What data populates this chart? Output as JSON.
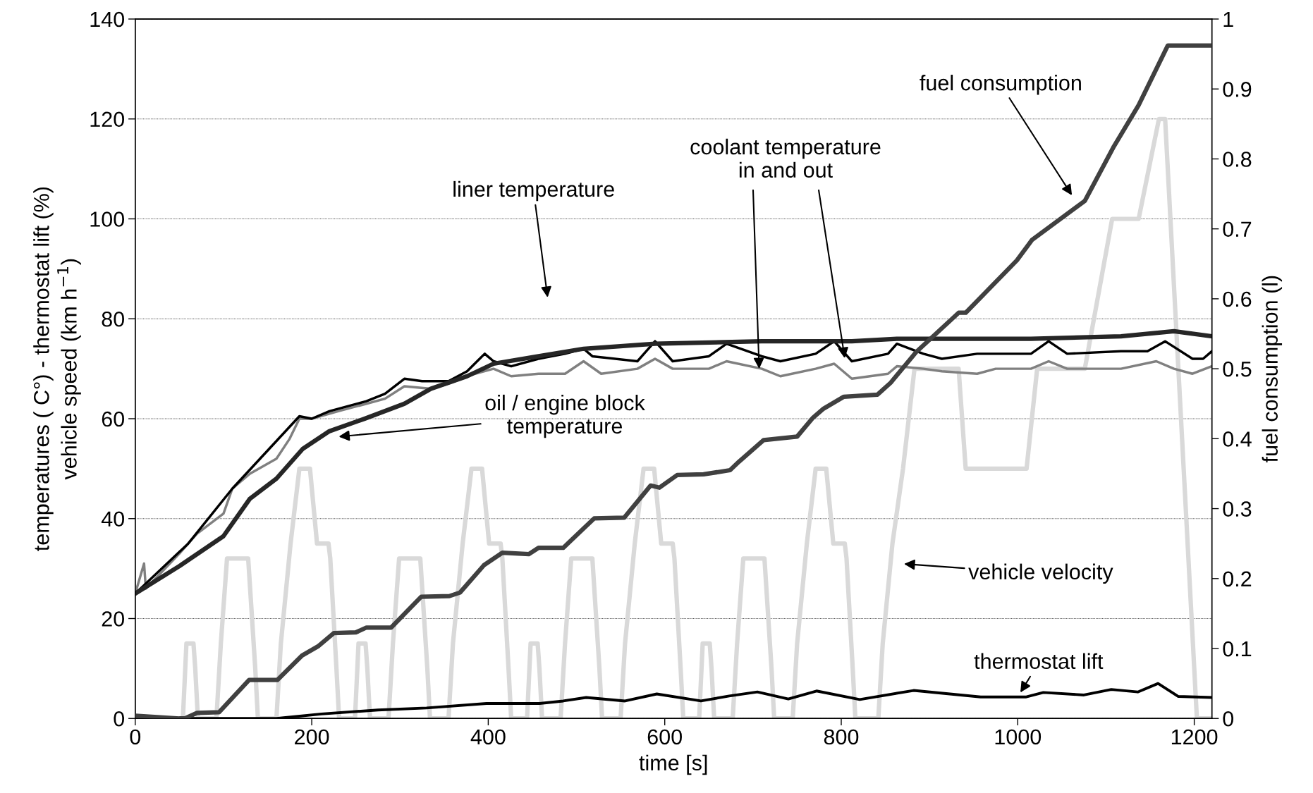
{
  "chart_data": {
    "type": "line",
    "xlabel": "time [s]",
    "ylabel": "temperatures ( C°) - thermostat lift (%)\nvehicle speed (km h$^{−1}$)",
    "y2label": "fuel consumption (l)",
    "xlim": [
      0,
      1220
    ],
    "xticks": [
      0,
      200,
      400,
      600,
      800,
      1000,
      1200
    ],
    "ylim": [
      0,
      140
    ],
    "yticks": [
      0,
      20,
      40,
      60,
      80,
      100,
      120,
      140
    ],
    "y2lim": [
      0,
      1
    ],
    "y2ticks": [
      0,
      0.1,
      0.2,
      0.3,
      0.4,
      0.5,
      0.6,
      0.7,
      0.8,
      0.9,
      1
    ],
    "grid": "y",
    "series": [
      {
        "color": "#d9d9d9",
        "x": [
          0,
          43,
          54,
          58,
          66,
          68,
          71,
          92,
          97,
          104,
          128,
          136,
          139,
          160,
          165,
          176,
          186,
          198,
          206,
          219,
          221,
          228,
          231,
          249,
          253,
          261,
          263,
          266,
          287,
          292,
          299,
          323,
          331,
          334,
          355,
          360,
          371,
          381,
          393,
          401,
          414,
          416,
          423,
          426,
          444,
          448,
          456,
          458,
          461,
          482,
          487,
          494,
          518,
          526,
          529,
          550,
          555,
          566,
          576,
          588,
          596,
          609,
          611,
          618,
          621,
          639,
          643,
          651,
          653,
          656,
          677,
          682,
          689,
          713,
          721,
          724,
          745,
          750,
          761,
          771,
          783,
          791,
          804,
          806,
          813,
          816,
          842,
          847,
          858,
          870,
          883,
          933,
          941,
          1010,
          1022,
          1076,
          1107,
          1137,
          1160,
          1167,
          1203,
          1220
        ],
        "values": [
          0,
          0,
          0,
          15,
          15,
          10,
          0,
          0,
          15,
          32,
          32,
          10,
          0,
          0,
          15,
          35,
          50,
          50,
          35,
          35,
          32,
          10,
          0,
          0,
          15,
          15,
          10,
          0,
          0,
          15,
          32,
          32,
          10,
          0,
          0,
          15,
          35,
          50,
          50,
          35,
          35,
          32,
          10,
          0,
          0,
          15,
          15,
          10,
          0,
          0,
          15,
          32,
          32,
          10,
          0,
          0,
          15,
          35,
          50,
          50,
          35,
          35,
          32,
          10,
          0,
          0,
          15,
          15,
          10,
          0,
          0,
          15,
          32,
          32,
          10,
          0,
          0,
          15,
          35,
          50,
          50,
          35,
          35,
          32,
          10,
          0,
          0,
          15,
          35,
          50,
          70,
          70,
          50,
          50,
          70,
          70,
          100,
          100,
          120,
          120,
          0,
          0
        ]
      },
      {
        "color": "#808080",
        "x": [
          0,
          10,
          12,
          50,
          60,
          70,
          100,
          110,
          130,
          160,
          175,
          186,
          200,
          230,
          262,
          283,
          305,
          335,
          355,
          385,
          406,
          426,
          457,
          487,
          508,
          528,
          569,
          589,
          609,
          650,
          670,
          710,
          731,
          771,
          792,
          812,
          853,
          863,
          893,
          914,
          954,
          975,
          1015,
          1035,
          1056,
          1117,
          1157,
          1177,
          1198,
          1220
        ],
        "values": [
          25,
          31,
          26,
          33,
          35,
          37,
          41,
          46,
          49,
          52,
          56,
          60,
          60,
          61.5,
          63,
          64,
          66.5,
          66,
          67,
          69,
          70,
          68.5,
          69,
          69,
          71.5,
          69,
          70,
          72,
          70,
          70,
          71.5,
          70,
          68.5,
          70,
          71,
          68,
          69,
          70.5,
          70,
          69.5,
          69,
          70,
          70,
          71.5,
          70,
          70,
          71.5,
          70,
          69,
          70.5
        ]
      },
      {
        "color": "#000000",
        "x": [
          0,
          60,
          110,
          186,
          200,
          220,
          262,
          283,
          305,
          325,
          355,
          376,
          396,
          406,
          426,
          457,
          487,
          508,
          518,
          569,
          589,
          609,
          650,
          670,
          710,
          731,
          771,
          792,
          812,
          853,
          863,
          893,
          914,
          954,
          1015,
          1035,
          1056,
          1117,
          1147,
          1167,
          1198,
          1210,
          1220
        ],
        "values": [
          25,
          35,
          46,
          60.5,
          60,
          61.5,
          63.5,
          65,
          68,
          67.5,
          67.5,
          69.5,
          73,
          71.5,
          70.5,
          72,
          73,
          74,
          72.5,
          71.5,
          75.5,
          71.5,
          72.5,
          75,
          72.5,
          71.5,
          73,
          75.5,
          71.5,
          73,
          75,
          73,
          72,
          73,
          73,
          75.5,
          73,
          73.5,
          73.5,
          75.5,
          72,
          72,
          73.5
        ]
      },
      {
        "color": "#262626",
        "x": [
          0,
          50,
          100,
          130,
          160,
          190,
          220,
          260,
          305,
          335,
          376,
          406,
          457,
          508,
          589,
          710,
          812,
          863,
          914,
          1015,
          1117,
          1177,
          1220
        ],
        "values": [
          25,
          30.5,
          36.5,
          44,
          48,
          54,
          57.5,
          60,
          63,
          66,
          68.5,
          71,
          72.5,
          74,
          75,
          75.5,
          75.5,
          76,
          76,
          76,
          76.5,
          77.5,
          76.5
        ]
      },
      {
        "color": "#000000",
        "x": [
          0,
          50,
          160,
          211,
          275,
          330,
          398,
          458,
          485,
          511,
          555,
          591,
          641,
          673,
          705,
          740,
          772,
          821,
          882,
          958,
          1009,
          1029,
          1075,
          1106,
          1136,
          1159,
          1182,
          1220
        ],
        "values": [
          0.5,
          0,
          0,
          0.9,
          1.7,
          2.1,
          3,
          3,
          3.5,
          4.2,
          3.5,
          4.9,
          3.5,
          4.5,
          5.3,
          3.9,
          5.5,
          3.8,
          5.6,
          4.3,
          4.3,
          5.2,
          4.7,
          5.8,
          5.3,
          7,
          4.4,
          4.2
        ]
      },
      {
        "color": "#404040",
        "axis": "y2",
        "x": [
          0,
          50,
          56,
          70,
          95,
          129,
          161,
          189,
          207,
          225,
          250,
          262,
          290,
          324,
          356,
          368,
          395,
          416,
          446,
          457,
          485,
          520,
          554,
          584,
          594,
          614,
          644,
          674,
          684,
          712,
          750,
          768,
          780,
          803,
          841,
          856,
          885,
          933,
          941,
          999,
          1016,
          1076,
          1109,
          1137,
          1170,
          1220
        ],
        "values": [
          0.004,
          0,
          0,
          0.008,
          0.009,
          0.055,
          0.055,
          0.09,
          0.103,
          0.122,
          0.123,
          0.13,
          0.13,
          0.174,
          0.175,
          0.18,
          0.219,
          0.237,
          0.235,
          0.244,
          0.244,
          0.286,
          0.287,
          0.333,
          0.33,
          0.348,
          0.349,
          0.355,
          0.367,
          0.398,
          0.403,
          0.43,
          0.443,
          0.46,
          0.463,
          0.48,
          0.524,
          0.58,
          0.58,
          0.655,
          0.684,
          0.74,
          0.818,
          0.877,
          0.962,
          0.962
        ]
      }
    ],
    "annotations": [
      "liner temperature",
      {
        "text": "coolant temperature\nin and out",
        "x": 707,
        "y": 70
      },
      "oil / engine block\ntemperature",
      "fuel consumption",
      "vehicle velocity",
      {
        "text": "thermostat lift",
        "x": 1003,
        "y": 5.2
      }
    ]
  }
}
